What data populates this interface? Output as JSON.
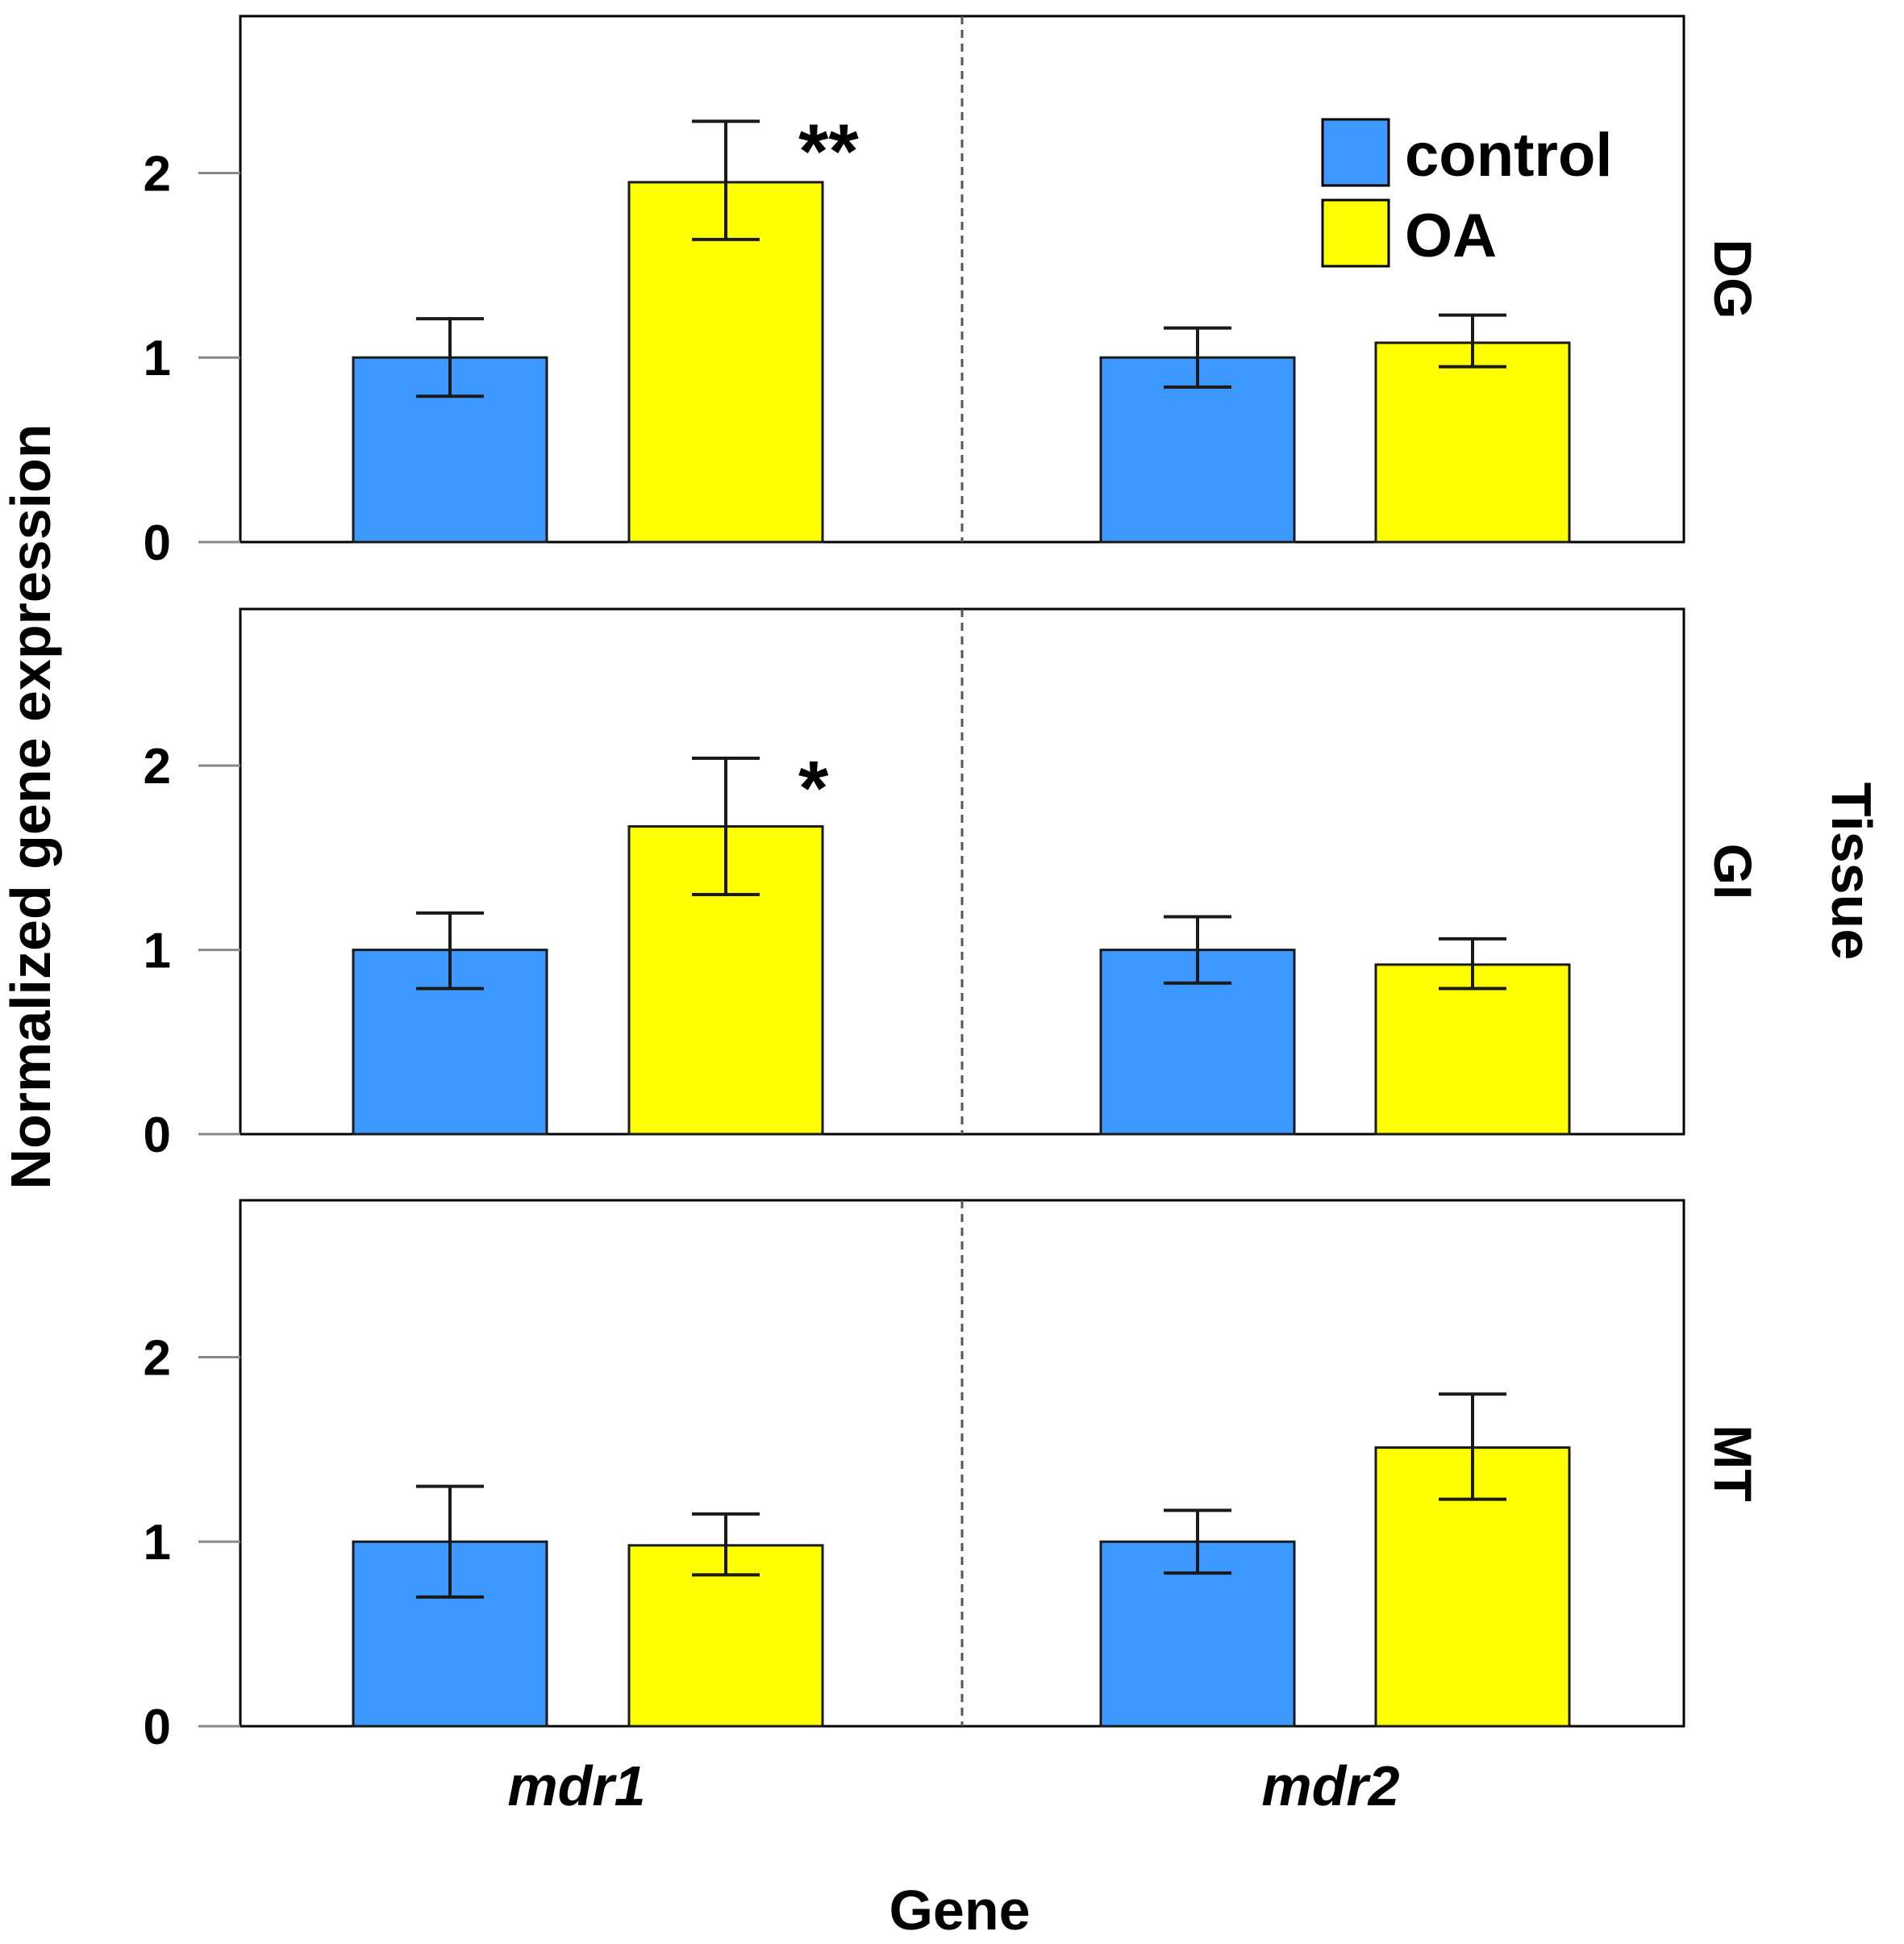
{
  "chart_data": {
    "type": "bar",
    "xlabel": "Gene",
    "ylabel": "Normalized gene expression",
    "facet_label": "Tissue",
    "categories": [
      "mdr1",
      "mdr2"
    ],
    "ylim": [
      0,
      2.85
    ],
    "yticks": [
      "0",
      "1",
      "2"
    ],
    "legend": {
      "position": "top-right",
      "entries": [
        {
          "label": "control",
          "color": "#3d98ff"
        },
        {
          "label": "OA",
          "color": "#ffff00"
        }
      ]
    },
    "series": [
      {
        "name": "control",
        "color": "#3d98ff"
      },
      {
        "name": "OA",
        "color": "#ffff00"
      }
    ],
    "panels": [
      {
        "facet": "DG",
        "values": {
          "control": [
            1.0,
            1.0
          ],
          "OA": [
            1.95,
            1.08
          ]
        },
        "error_low": {
          "control": [
            0.79,
            0.84
          ],
          "OA": [
            1.64,
            0.95
          ]
        },
        "error_high": {
          "control": [
            1.21,
            1.16
          ],
          "OA": [
            2.28,
            1.23
          ]
        },
        "annotations": [
          {
            "text": "**",
            "category": "mdr1",
            "series": "OA"
          }
        ]
      },
      {
        "facet": "GI",
        "values": {
          "control": [
            1.0,
            1.0
          ],
          "OA": [
            1.67,
            0.92
          ]
        },
        "error_low": {
          "control": [
            0.79,
            0.82
          ],
          "OA": [
            1.3,
            0.79
          ]
        },
        "error_high": {
          "control": [
            1.2,
            1.18
          ],
          "OA": [
            2.04,
            1.06
          ]
        },
        "annotations": [
          {
            "text": "*",
            "category": "mdr1",
            "series": "OA"
          }
        ]
      },
      {
        "facet": "MT",
        "values": {
          "control": [
            1.0,
            1.0
          ],
          "OA": [
            0.98,
            1.51
          ]
        },
        "error_low": {
          "control": [
            0.7,
            0.83
          ],
          "OA": [
            0.82,
            1.23
          ]
        },
        "error_high": {
          "control": [
            1.3,
            1.17
          ],
          "OA": [
            1.15,
            1.8
          ]
        },
        "annotations": []
      }
    ]
  }
}
